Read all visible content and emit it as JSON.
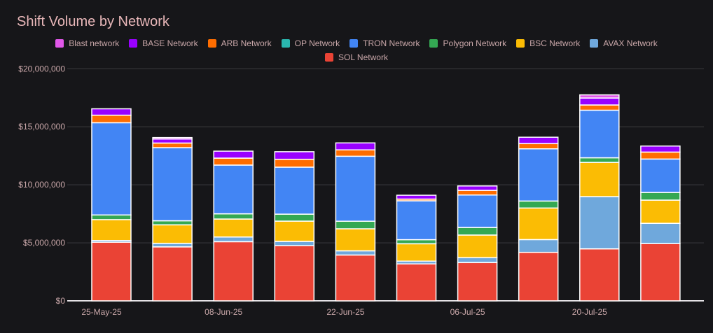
{
  "title": "Shift Volume by Network",
  "legend_order": [
    "Blast network",
    "BASE Network",
    "ARB Network",
    "OP Network",
    "TRON Network",
    "Polygon Network",
    "BSC Network",
    "AVAX Network",
    "SOL Network"
  ],
  "chart_data": {
    "type": "bar",
    "stacked": true,
    "title": "Shift Volume by Network",
    "categories": [
      "25-May-25",
      "",
      "08-Jun-25",
      "",
      "22-Jun-25",
      "",
      "06-Jul-25",
      "",
      "20-Jul-25",
      ""
    ],
    "x_tick_labels": [
      "25-May-25",
      "08-Jun-25",
      "22-Jun-25",
      "06-Jul-25",
      "20-Jul-25"
    ],
    "y_tick_labels": [
      "$0",
      "$5,000,000",
      "$10,000,000",
      "$15,000,000",
      "$20,000,000"
    ],
    "ylim": [
      0,
      20000000
    ],
    "grid": true,
    "legend_position": "top",
    "series": [
      {
        "name": "SOL Network",
        "color": "#ea4335",
        "values": [
          5050000,
          4650000,
          5100000,
          4750000,
          3950000,
          3180000,
          3300000,
          4180000,
          4480000,
          4930000
        ]
      },
      {
        "name": "AVAX Network",
        "color": "#6fa8dc",
        "values": [
          150000,
          300000,
          400000,
          370000,
          360000,
          240000,
          420000,
          1100000,
          4500000,
          1750000
        ]
      },
      {
        "name": "BSC Network",
        "color": "#fbbc04",
        "values": [
          1800000,
          1600000,
          1550000,
          1750000,
          1900000,
          1500000,
          1950000,
          2720000,
          2950000,
          2000000
        ]
      },
      {
        "name": "Polygon Network",
        "color": "#34a853",
        "values": [
          400000,
          350000,
          450000,
          600000,
          650000,
          350000,
          650000,
          600000,
          400000,
          660000
        ]
      },
      {
        "name": "TRON Network",
        "color": "#4285f4",
        "values": [
          7950000,
          6300000,
          4200000,
          4050000,
          5600000,
          3350000,
          2800000,
          4500000,
          4100000,
          2880000
        ]
      },
      {
        "name": "OP Network",
        "color": "#2ab7af",
        "values": [
          0,
          0,
          0,
          0,
          0,
          0,
          0,
          0,
          0,
          0
        ]
      },
      {
        "name": "ARB Network",
        "color": "#ff6d00",
        "values": [
          650000,
          400000,
          600000,
          680000,
          550000,
          150000,
          400000,
          450000,
          450000,
          600000
        ]
      },
      {
        "name": "BASE Network",
        "color": "#9900ff",
        "values": [
          550000,
          350000,
          600000,
          650000,
          600000,
          330000,
          380000,
          550000,
          600000,
          520000
        ]
      },
      {
        "name": "Blast network",
        "color": "#e057e8",
        "values": [
          0,
          120000,
          0,
          0,
          0,
          0,
          0,
          0,
          270000,
          0
        ]
      }
    ]
  },
  "style": {
    "background": "#161619",
    "title_color": "#e8b7b9",
    "label_color": "#c9a7a9",
    "gridline_color": "#3c3c41",
    "zeroline_color": "#e5e2e6",
    "bar_border_color": "#ffffff"
  }
}
